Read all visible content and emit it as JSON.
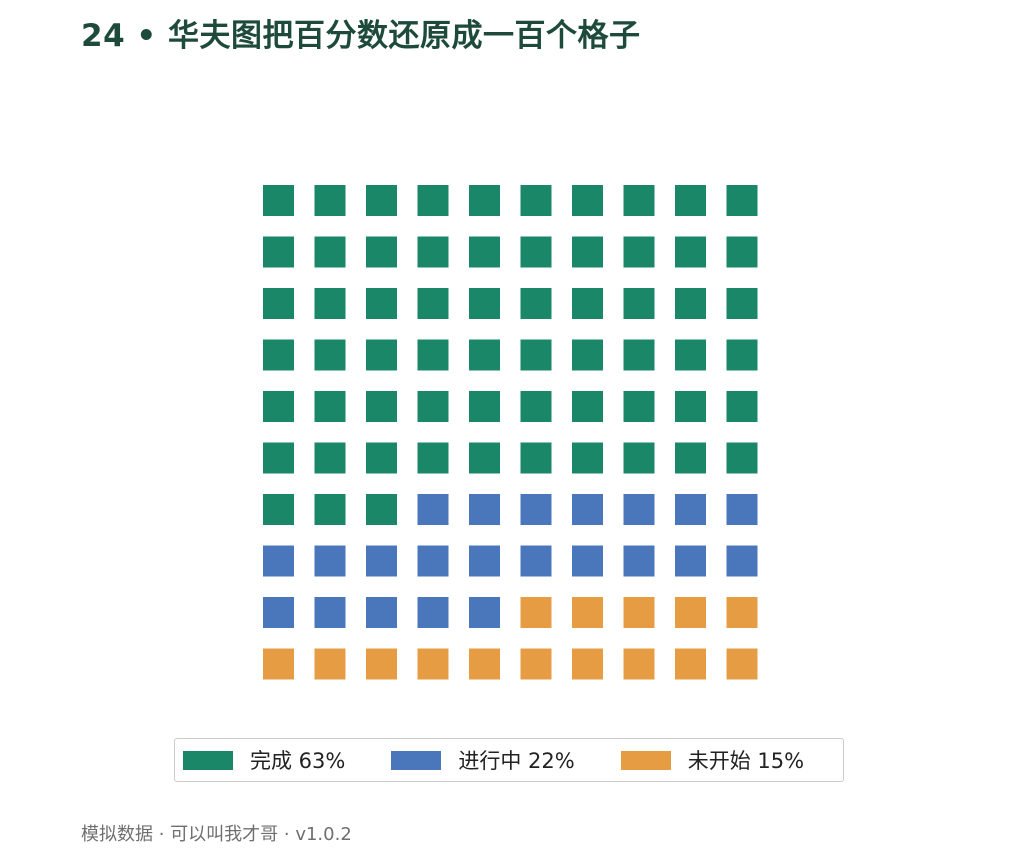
{
  "title": "24 • 华夫图把百分数还原成一百个格子",
  "footer": "模拟数据 · 可以叫我才哥 · v1.0.2",
  "chart_data": {
    "type": "waffle",
    "grid": {
      "rows": 10,
      "cols": 10
    },
    "total": 100,
    "series": [
      {
        "name": "完成",
        "value": 63,
        "label": "完成 63%",
        "color": "#1b8769"
      },
      {
        "name": "进行中",
        "value": 22,
        "label": "进行中 22%",
        "color": "#4a77bb"
      },
      {
        "name": "未开始",
        "value": 15,
        "label": "未开始 15%",
        "color": "#e69c42"
      }
    ],
    "legend_position": "bottom-center"
  }
}
